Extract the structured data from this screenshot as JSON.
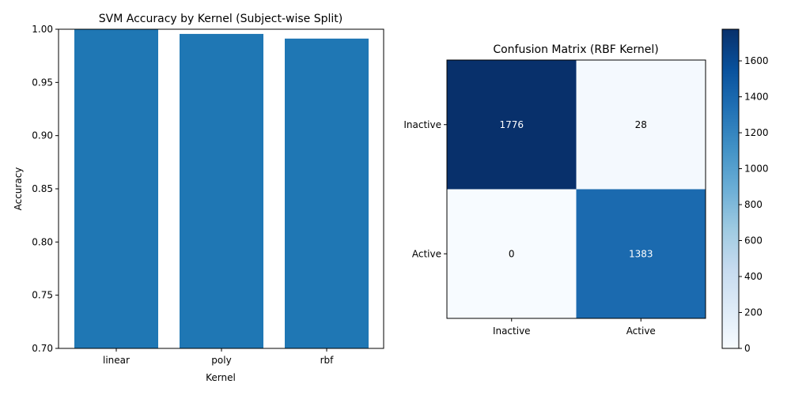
{
  "chart_data": [
    {
      "type": "bar",
      "title": "SVM Accuracy by Kernel (Subject-wise Split)",
      "xlabel": "Kernel",
      "ylabel": "Accuracy",
      "categories": [
        "linear",
        "poly",
        "rbf"
      ],
      "values": [
        1.0,
        0.9956,
        0.9912
      ],
      "ylim": [
        0.7,
        1.0
      ],
      "yticks": [
        "0.70",
        "0.75",
        "0.80",
        "0.85",
        "0.90",
        "0.95",
        "1.00"
      ],
      "bar_color": "#1f77b4",
      "grid": false
    },
    {
      "type": "heatmap",
      "title": "Confusion Matrix (RBF Kernel)",
      "row_labels": [
        "Inactive",
        "Active"
      ],
      "col_labels": [
        "Inactive",
        "Active"
      ],
      "values": [
        [
          1776,
          28
        ],
        [
          0,
          1383
        ]
      ],
      "colormap": "Blues",
      "vmin": 0,
      "vmax": 1776,
      "colorbar_ticks": [
        "0",
        "200",
        "400",
        "600",
        "800",
        "1000",
        "1200",
        "1400",
        "1600"
      ]
    }
  ]
}
